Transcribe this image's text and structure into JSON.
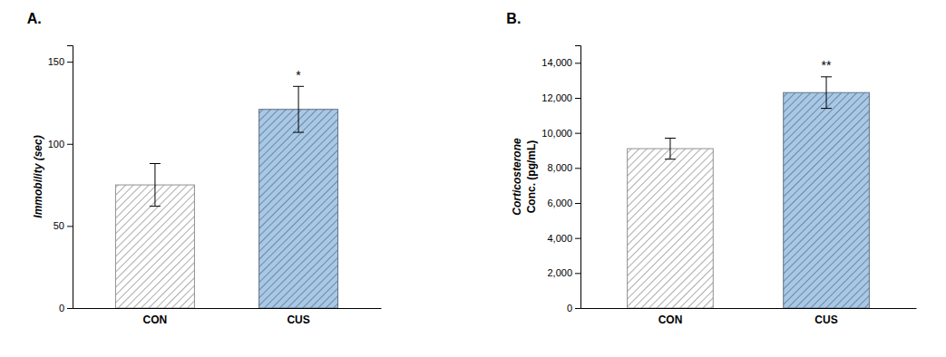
{
  "chart_data": [
    {
      "type": "bar",
      "title": "A.",
      "categories": [
        "CON",
        "CUS"
      ],
      "values": [
        75,
        121
      ],
      "errors": [
        13,
        14
      ],
      "colors": [
        "white",
        "#a8c8e8"
      ],
      "ylabel": "Immobility (sec)",
      "ylim": [
        0,
        160
      ],
      "yticks": [
        0,
        50,
        100,
        150
      ],
      "annotations": [
        {
          "x": "CUS",
          "text": "*"
        }
      ],
      "grid": false
    },
    {
      "type": "bar",
      "title": "B.",
      "categories": [
        "CON",
        "CUS"
      ],
      "values": [
        9100,
        12300
      ],
      "errors": [
        600,
        900
      ],
      "colors": [
        "white",
        "#a8c8e8"
      ],
      "ylabel": [
        "Corticosterone",
        "Conc. (pg/mL)"
      ],
      "ylim": [
        0,
        15000
      ],
      "yticks": [
        0,
        {
          "value": 2000,
          "label": "2,000"
        },
        {
          "value": 4000,
          "label": "4,000"
        },
        {
          "value": 6000,
          "label": "6,000"
        },
        {
          "value": 8000,
          "label": "8,000"
        },
        {
          "value": 10000,
          "label": "10,000"
        },
        {
          "value": 12000,
          "label": "12,000"
        },
        {
          "value": 14000,
          "label": "14,000"
        }
      ],
      "annotations": [
        {
          "x": "CUS",
          "text": "**"
        }
      ],
      "grid": false
    }
  ]
}
